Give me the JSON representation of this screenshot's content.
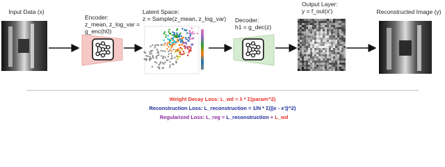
{
  "input": {
    "label": "Input Data (x)"
  },
  "encoder": {
    "lines": [
      "Encoder:",
      "z_mean, z_log_var =",
      "g_enc(h0)"
    ]
  },
  "latent": {
    "lines": [
      "Latent Space:",
      "z = Sample(z_mean, z_log_var)"
    ]
  },
  "decoder": {
    "lines": [
      "Decoder:",
      "h1 = g_dec(z)"
    ]
  },
  "output": {
    "lines": [
      "Output Layer:",
      "y = f_out(x')"
    ]
  },
  "reconstructed": {
    "label": "Reconstructed Image (y)"
  },
  "losses": {
    "weight_decay": "Weight Decay Loss: L_wd = λ * Σ(param^2)",
    "reconstruction": "Reconstruction Loss: L_reconstruction = 1/N * Σ(||x - x'||^2)",
    "regularized": [
      "Regularized Loss: L_reg = ",
      "L_reconstruction",
      " + ",
      "L_wd"
    ]
  }
}
